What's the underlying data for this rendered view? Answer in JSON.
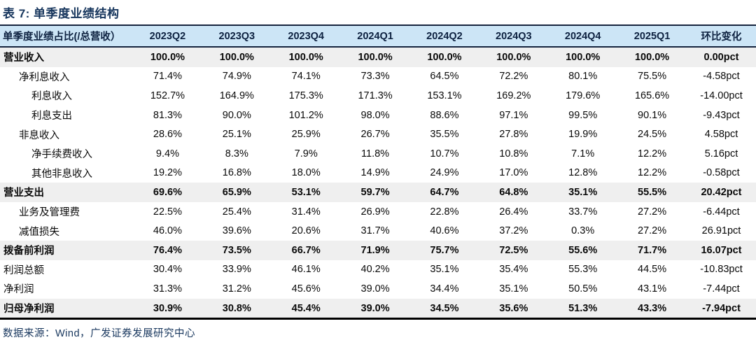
{
  "title": "表 7: 单季度业绩结构",
  "source": "数据来源：Wind，广发证券发展研究中心",
  "colors": {
    "title_navy": "#17365d",
    "header_bg": "#cce5f6",
    "header_text": "#0d2140",
    "row_shade": "#efefef",
    "rule_dark": "#16243e",
    "bottom_rule": "#000000"
  },
  "table": {
    "columns": [
      "单季度业绩占比(/总营收）",
      "2023Q2",
      "2023Q3",
      "2023Q4",
      "2024Q1",
      "2024Q2",
      "2024Q3",
      "2024Q4",
      "2025Q1",
      "环比变化"
    ],
    "rows": [
      {
        "label": "营业收入",
        "indent": 0,
        "emph": true,
        "shaded": true,
        "values": [
          "100.0%",
          "100.0%",
          "100.0%",
          "100.0%",
          "100.0%",
          "100.0%",
          "100.0%",
          "100.0%",
          "0.00pct"
        ]
      },
      {
        "label": "净利息收入",
        "indent": 1,
        "emph": false,
        "shaded": false,
        "values": [
          "71.4%",
          "74.9%",
          "74.1%",
          "73.3%",
          "64.5%",
          "72.2%",
          "80.1%",
          "75.5%",
          "-4.58pct"
        ]
      },
      {
        "label": "利息收入",
        "indent": 2,
        "emph": false,
        "shaded": false,
        "values": [
          "152.7%",
          "164.9%",
          "175.3%",
          "171.3%",
          "153.1%",
          "169.2%",
          "179.6%",
          "165.6%",
          "-14.00pct"
        ]
      },
      {
        "label": "利息支出",
        "indent": 2,
        "emph": false,
        "shaded": false,
        "values": [
          "81.3%",
          "90.0%",
          "101.2%",
          "98.0%",
          "88.6%",
          "97.1%",
          "99.5%",
          "90.1%",
          "-9.43pct"
        ]
      },
      {
        "label": "非息收入",
        "indent": 1,
        "emph": false,
        "shaded": false,
        "values": [
          "28.6%",
          "25.1%",
          "25.9%",
          "26.7%",
          "35.5%",
          "27.8%",
          "19.9%",
          "24.5%",
          "4.58pct"
        ]
      },
      {
        "label": "净手续费收入",
        "indent": 2,
        "emph": false,
        "shaded": false,
        "values": [
          "9.4%",
          "8.3%",
          "7.9%",
          "11.8%",
          "10.7%",
          "10.8%",
          "7.1%",
          "12.2%",
          "5.16pct"
        ]
      },
      {
        "label": "其他非息收入",
        "indent": 2,
        "emph": false,
        "shaded": false,
        "values": [
          "19.2%",
          "16.8%",
          "18.0%",
          "14.9%",
          "24.9%",
          "17.0%",
          "12.8%",
          "12.2%",
          "-0.58pct"
        ]
      },
      {
        "label": "营业支出",
        "indent": 0,
        "emph": true,
        "shaded": true,
        "values": [
          "69.6%",
          "65.9%",
          "53.1%",
          "59.7%",
          "64.7%",
          "64.8%",
          "35.1%",
          "55.5%",
          "20.42pct"
        ]
      },
      {
        "label": "业务及管理费",
        "indent": 1,
        "emph": false,
        "shaded": false,
        "values": [
          "22.5%",
          "25.4%",
          "31.4%",
          "26.9%",
          "22.8%",
          "26.4%",
          "33.7%",
          "27.2%",
          "-6.44pct"
        ]
      },
      {
        "label": "减值损失",
        "indent": 1,
        "emph": false,
        "shaded": false,
        "values": [
          "46.0%",
          "39.6%",
          "20.6%",
          "31.7%",
          "40.6%",
          "37.2%",
          "0.3%",
          "27.2%",
          "26.91pct"
        ]
      },
      {
        "label": "拨备前利润",
        "indent": 0,
        "emph": true,
        "shaded": true,
        "values": [
          "76.4%",
          "73.5%",
          "66.7%",
          "71.9%",
          "75.7%",
          "72.5%",
          "55.6%",
          "71.7%",
          "16.07pct"
        ]
      },
      {
        "label": "利润总额",
        "indent": 0,
        "emph": false,
        "shaded": false,
        "values": [
          "30.4%",
          "33.9%",
          "46.1%",
          "40.2%",
          "35.1%",
          "35.4%",
          "55.3%",
          "44.5%",
          "-10.83pct"
        ]
      },
      {
        "label": "净利润",
        "indent": 0,
        "emph": false,
        "shaded": false,
        "values": [
          "31.3%",
          "31.2%",
          "45.6%",
          "39.0%",
          "34.4%",
          "35.1%",
          "50.5%",
          "43.1%",
          "-7.44pct"
        ]
      },
      {
        "label": "归母净利润",
        "indent": 0,
        "emph": true,
        "shaded": true,
        "values": [
          "30.9%",
          "30.8%",
          "45.4%",
          "39.0%",
          "34.5%",
          "35.6%",
          "51.3%",
          "43.3%",
          "-7.94pct"
        ]
      }
    ]
  }
}
